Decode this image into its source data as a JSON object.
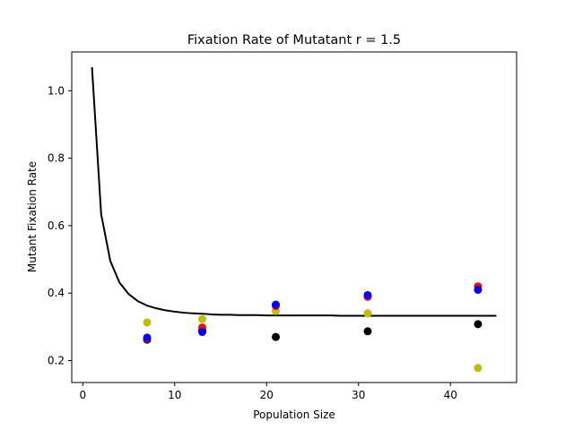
{
  "chart_data": {
    "type": "scatter",
    "title": "Fixation Rate of Mutatant r = 1.5",
    "xlabel": "Population Size",
    "ylabel": "Mutant Fixation Rate",
    "xlim": [
      -1.2,
      47.2
    ],
    "ylim": [
      0.135,
      1.115
    ],
    "xticks": [
      0,
      10,
      20,
      30,
      40
    ],
    "yticks": [
      0.2,
      0.4,
      0.6,
      0.8,
      1.0
    ],
    "grid": false,
    "line": {
      "name": "",
      "color": "#000000",
      "x": [
        1,
        2,
        3,
        4,
        5,
        6,
        7,
        8,
        9,
        10,
        11,
        12,
        13,
        14,
        15,
        16,
        17,
        18,
        19,
        20,
        21,
        22,
        23,
        24,
        25,
        26,
        27,
        28,
        29,
        30,
        31,
        32,
        33,
        34,
        35,
        36,
        37,
        38,
        39,
        40,
        41,
        42,
        43,
        44,
        45
      ],
      "y": [
        1.07,
        0.634,
        0.495,
        0.431,
        0.397,
        0.376,
        0.363,
        0.355,
        0.349,
        0.345,
        0.342,
        0.34,
        0.339,
        0.337,
        0.336,
        0.336,
        0.335,
        0.335,
        0.335,
        0.334,
        0.334,
        0.334,
        0.334,
        0.334,
        0.334,
        0.334,
        0.334,
        0.333,
        0.333,
        0.333,
        0.333,
        0.333,
        0.333,
        0.333,
        0.333,
        0.333,
        0.333,
        0.333,
        0.333,
        0.333,
        0.333,
        0.333,
        0.333,
        0.333,
        0.333
      ]
    },
    "series": [
      {
        "color": "#000000",
        "x": [
          7,
          13,
          21,
          31,
          43
        ],
        "y": [
          0.262,
          0.29,
          0.27,
          0.287,
          0.308
        ]
      },
      {
        "color": "#bfbf00",
        "x": [
          7,
          13,
          21,
          31,
          43
        ],
        "y": [
          0.313,
          0.323,
          0.347,
          0.34,
          0.178
        ]
      },
      {
        "color": "#ff0000",
        "x": [
          7,
          13,
          21,
          31,
          43
        ],
        "y": [
          0.265,
          0.298,
          0.362,
          0.389,
          0.42
        ]
      },
      {
        "color": "#0000ff",
        "x": [
          7,
          13,
          21,
          31,
          43
        ],
        "y": [
          0.268,
          0.285,
          0.366,
          0.394,
          0.41
        ]
      }
    ]
  }
}
